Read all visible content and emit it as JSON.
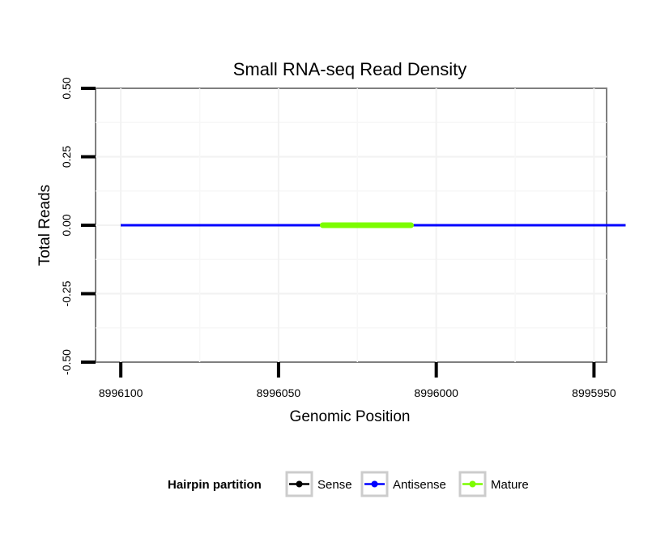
{
  "chart_data": {
    "type": "line",
    "title": "Small RNA-seq Read Density",
    "xlabel": "Genomic Position",
    "ylabel": "Total Reads",
    "x_reversed": true,
    "xlim": [
      8996108,
      8995946
    ],
    "ylim": [
      -0.5,
      0.5
    ],
    "x_ticks": [
      8996100,
      8996050,
      8996000,
      8995950
    ],
    "x_tick_labels": [
      "8996100",
      "8996050",
      "8996000",
      "8995950"
    ],
    "y_ticks": [
      0.5,
      0.25,
      0.0,
      -0.25,
      -0.5
    ],
    "y_tick_labels": [
      "0.50",
      "0.25",
      "0.00",
      "-0.25",
      "-0.50"
    ],
    "grid": true,
    "legend_position": "bottom",
    "legend_title": "Hairpin partition",
    "series": [
      {
        "name": "Sense",
        "color": "#000000",
        "x": [
          8996100,
          8995940
        ],
        "y": [
          0,
          0
        ]
      },
      {
        "name": "Antisense",
        "color": "#0000ff",
        "x": [
          8996100,
          8995940
        ],
        "y": [
          0,
          0
        ]
      },
      {
        "name": "Mature",
        "color": "#7cfc00",
        "x": [
          8996036,
          8996008
        ],
        "y": [
          0,
          0
        ]
      }
    ]
  }
}
